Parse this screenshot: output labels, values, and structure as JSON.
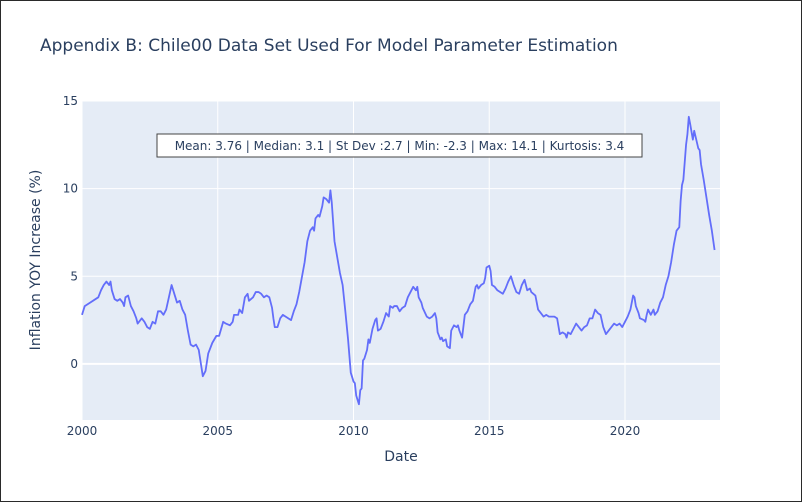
{
  "chart_data": {
    "type": "line",
    "title": "Appendix B: Chile00 Data Set Used For Model Parameter Estimation",
    "xlabel": "Date",
    "ylabel": "Inflation YOY Increase (%)",
    "xlim": [
      2000,
      2023.5
    ],
    "ylim": [
      -3.2,
      15
    ],
    "x_ticks": [
      2000,
      2005,
      2010,
      2015,
      2020
    ],
    "y_ticks": [
      0,
      5,
      10,
      15
    ],
    "grid": true,
    "annotation": "Mean: 3.76 | Median: 3.1 | St Dev :2.7 | Min: -2.3 | Max: 14.1 | Kurtosis: 3.4",
    "colors": {
      "line": "#636efa",
      "plot_bg": "#e5ecf6",
      "grid": "#ffffff",
      "text": "#2a3f5f"
    },
    "series": [
      {
        "points": [
          [
            2000.0,
            2.8
          ],
          [
            2000.1,
            3.3
          ],
          [
            2000.3,
            3.5
          ],
          [
            2000.5,
            3.7
          ],
          [
            2000.6,
            3.8
          ],
          [
            2000.7,
            4.2
          ],
          [
            2000.8,
            4.5
          ],
          [
            2000.9,
            4.7
          ],
          [
            2001.0,
            4.5
          ],
          [
            2001.05,
            4.7
          ],
          [
            2001.1,
            4.2
          ],
          [
            2001.2,
            3.7
          ],
          [
            2001.3,
            3.6
          ],
          [
            2001.4,
            3.7
          ],
          [
            2001.5,
            3.5
          ],
          [
            2001.55,
            3.3
          ],
          [
            2001.6,
            3.8
          ],
          [
            2001.7,
            3.9
          ],
          [
            2001.8,
            3.3
          ],
          [
            2001.9,
            3.0
          ],
          [
            2002.0,
            2.6
          ],
          [
            2002.05,
            2.3
          ],
          [
            2002.2,
            2.6
          ],
          [
            2002.3,
            2.4
          ],
          [
            2002.4,
            2.1
          ],
          [
            2002.5,
            2.0
          ],
          [
            2002.6,
            2.4
          ],
          [
            2002.7,
            2.3
          ],
          [
            2002.8,
            3.0
          ],
          [
            2002.9,
            3.0
          ],
          [
            2003.0,
            2.8
          ],
          [
            2003.1,
            3.1
          ],
          [
            2003.2,
            3.8
          ],
          [
            2003.3,
            4.5
          ],
          [
            2003.4,
            4.0
          ],
          [
            2003.5,
            3.5
          ],
          [
            2003.6,
            3.6
          ],
          [
            2003.7,
            3.1
          ],
          [
            2003.8,
            2.8
          ],
          [
            2003.9,
            1.9
          ],
          [
            2004.0,
            1.1
          ],
          [
            2004.1,
            1.0
          ],
          [
            2004.2,
            1.1
          ],
          [
            2004.3,
            0.8
          ],
          [
            2004.35,
            0.3
          ],
          [
            2004.4,
            -0.2
          ],
          [
            2004.45,
            -0.7
          ],
          [
            2004.55,
            -0.4
          ],
          [
            2004.65,
            0.6
          ],
          [
            2004.8,
            1.2
          ],
          [
            2004.95,
            1.6
          ],
          [
            2005.05,
            1.6
          ],
          [
            2005.2,
            2.4
          ],
          [
            2005.3,
            2.3
          ],
          [
            2005.45,
            2.2
          ],
          [
            2005.55,
            2.4
          ],
          [
            2005.6,
            2.8
          ],
          [
            2005.75,
            2.8
          ],
          [
            2005.8,
            3.1
          ],
          [
            2005.9,
            2.9
          ],
          [
            2006.0,
            3.8
          ],
          [
            2006.1,
            4.0
          ],
          [
            2006.15,
            3.6
          ],
          [
            2006.3,
            3.8
          ],
          [
            2006.4,
            4.1
          ],
          [
            2006.5,
            4.1
          ],
          [
            2006.6,
            4.0
          ],
          [
            2006.7,
            3.8
          ],
          [
            2006.8,
            3.9
          ],
          [
            2006.9,
            3.8
          ],
          [
            2007.0,
            3.2
          ],
          [
            2007.05,
            2.6
          ],
          [
            2007.1,
            2.1
          ],
          [
            2007.2,
            2.1
          ],
          [
            2007.3,
            2.6
          ],
          [
            2007.4,
            2.8
          ],
          [
            2007.5,
            2.7
          ],
          [
            2007.6,
            2.6
          ],
          [
            2007.7,
            2.5
          ],
          [
            2007.8,
            3.0
          ],
          [
            2007.9,
            3.4
          ],
          [
            2008.0,
            4.1
          ],
          [
            2008.2,
            5.8
          ],
          [
            2008.3,
            7.0
          ],
          [
            2008.4,
            7.6
          ],
          [
            2008.5,
            7.8
          ],
          [
            2008.55,
            7.6
          ],
          [
            2008.6,
            8.3
          ],
          [
            2008.7,
            8.5
          ],
          [
            2008.75,
            8.4
          ],
          [
            2008.85,
            9.0
          ],
          [
            2008.9,
            9.5
          ],
          [
            2009.0,
            9.4
          ],
          [
            2009.1,
            9.2
          ],
          [
            2009.15,
            9.9
          ],
          [
            2009.2,
            9.2
          ],
          [
            2009.3,
            7.0
          ],
          [
            2009.4,
            6.1
          ],
          [
            2009.5,
            5.2
          ],
          [
            2009.6,
            4.5
          ],
          [
            2009.7,
            3.0
          ],
          [
            2009.8,
            1.4
          ],
          [
            2009.9,
            -0.5
          ],
          [
            2010.0,
            -1.0
          ],
          [
            2010.05,
            -1.1
          ],
          [
            2010.1,
            -1.8
          ],
          [
            2010.2,
            -2.3
          ],
          [
            2010.25,
            -1.5
          ],
          [
            2010.3,
            -1.4
          ],
          [
            2010.35,
            0.2
          ],
          [
            2010.4,
            0.3
          ],
          [
            2010.5,
            0.8
          ],
          [
            2010.55,
            1.4
          ],
          [
            2010.6,
            1.2
          ],
          [
            2010.7,
            2.0
          ],
          [
            2010.8,
            2.5
          ],
          [
            2010.85,
            2.6
          ],
          [
            2010.9,
            1.9
          ],
          [
            2011.0,
            2.0
          ],
          [
            2011.1,
            2.4
          ],
          [
            2011.2,
            2.9
          ],
          [
            2011.3,
            2.7
          ],
          [
            2011.35,
            3.3
          ],
          [
            2011.45,
            3.2
          ],
          [
            2011.5,
            3.3
          ],
          [
            2011.6,
            3.3
          ],
          [
            2011.7,
            3.0
          ],
          [
            2011.8,
            3.2
          ],
          [
            2011.9,
            3.3
          ],
          [
            2012.0,
            3.8
          ],
          [
            2012.1,
            4.1
          ],
          [
            2012.2,
            4.4
          ],
          [
            2012.3,
            4.2
          ],
          [
            2012.35,
            4.4
          ],
          [
            2012.4,
            3.8
          ],
          [
            2012.5,
            3.5
          ],
          [
            2012.55,
            3.2
          ],
          [
            2012.7,
            2.7
          ],
          [
            2012.8,
            2.6
          ],
          [
            2012.9,
            2.7
          ],
          [
            2013.0,
            2.9
          ],
          [
            2013.05,
            2.6
          ],
          [
            2013.1,
            1.8
          ],
          [
            2013.2,
            1.4
          ],
          [
            2013.25,
            1.5
          ],
          [
            2013.3,
            1.3
          ],
          [
            2013.4,
            1.4
          ],
          [
            2013.45,
            1.0
          ],
          [
            2013.55,
            0.9
          ],
          [
            2013.6,
            1.9
          ],
          [
            2013.7,
            2.2
          ],
          [
            2013.8,
            2.1
          ],
          [
            2013.85,
            2.2
          ],
          [
            2013.9,
            1.9
          ],
          [
            2014.0,
            1.5
          ],
          [
            2014.1,
            2.8
          ],
          [
            2014.2,
            3.0
          ],
          [
            2014.3,
            3.4
          ],
          [
            2014.4,
            3.6
          ],
          [
            2014.5,
            4.4
          ],
          [
            2014.55,
            4.5
          ],
          [
            2014.6,
            4.3
          ],
          [
            2014.7,
            4.5
          ],
          [
            2014.8,
            4.6
          ],
          [
            2014.85,
            4.9
          ],
          [
            2014.9,
            5.5
          ],
          [
            2015.0,
            5.6
          ],
          [
            2015.05,
            5.3
          ],
          [
            2015.1,
            4.5
          ],
          [
            2015.2,
            4.4
          ],
          [
            2015.3,
            4.2
          ],
          [
            2015.4,
            4.1
          ],
          [
            2015.5,
            4.0
          ],
          [
            2015.6,
            4.3
          ],
          [
            2015.7,
            4.7
          ],
          [
            2015.8,
            5.0
          ],
          [
            2015.9,
            4.5
          ],
          [
            2016.0,
            4.1
          ],
          [
            2016.1,
            4.0
          ],
          [
            2016.2,
            4.5
          ],
          [
            2016.3,
            4.8
          ],
          [
            2016.4,
            4.2
          ],
          [
            2016.5,
            4.3
          ],
          [
            2016.55,
            4.1
          ],
          [
            2016.7,
            3.9
          ],
          [
            2016.8,
            3.1
          ],
          [
            2016.9,
            2.9
          ],
          [
            2017.0,
            2.7
          ],
          [
            2017.1,
            2.8
          ],
          [
            2017.2,
            2.7
          ],
          [
            2017.3,
            2.7
          ],
          [
            2017.4,
            2.7
          ],
          [
            2017.5,
            2.6
          ],
          [
            2017.6,
            1.7
          ],
          [
            2017.7,
            1.8
          ],
          [
            2017.8,
            1.7
          ],
          [
            2017.85,
            1.5
          ],
          [
            2017.9,
            1.8
          ],
          [
            2018.0,
            1.7
          ],
          [
            2018.1,
            2.0
          ],
          [
            2018.2,
            2.3
          ],
          [
            2018.3,
            2.1
          ],
          [
            2018.4,
            1.9
          ],
          [
            2018.5,
            2.1
          ],
          [
            2018.6,
            2.2
          ],
          [
            2018.7,
            2.6
          ],
          [
            2018.8,
            2.6
          ],
          [
            2018.9,
            3.1
          ],
          [
            2019.0,
            2.9
          ],
          [
            2019.1,
            2.8
          ],
          [
            2019.2,
            2.1
          ],
          [
            2019.3,
            1.7
          ],
          [
            2019.35,
            1.8
          ],
          [
            2019.4,
            1.9
          ],
          [
            2019.5,
            2.1
          ],
          [
            2019.6,
            2.3
          ],
          [
            2019.7,
            2.2
          ],
          [
            2019.8,
            2.3
          ],
          [
            2019.9,
            2.1
          ],
          [
            2020.0,
            2.4
          ],
          [
            2020.1,
            2.7
          ],
          [
            2020.2,
            3.1
          ],
          [
            2020.3,
            3.9
          ],
          [
            2020.35,
            3.8
          ],
          [
            2020.4,
            3.3
          ],
          [
            2020.5,
            2.9
          ],
          [
            2020.55,
            2.6
          ],
          [
            2020.7,
            2.5
          ],
          [
            2020.75,
            2.4
          ],
          [
            2020.8,
            2.8
          ],
          [
            2020.85,
            3.1
          ],
          [
            2020.95,
            2.8
          ],
          [
            2021.05,
            3.1
          ],
          [
            2021.1,
            2.8
          ],
          [
            2021.2,
            3.0
          ],
          [
            2021.3,
            3.5
          ],
          [
            2021.4,
            3.8
          ],
          [
            2021.5,
            4.5
          ],
          [
            2021.6,
            5.0
          ],
          [
            2021.7,
            5.8
          ],
          [
            2021.8,
            6.8
          ],
          [
            2021.9,
            7.6
          ],
          [
            2022.0,
            7.8
          ],
          [
            2022.05,
            9.3
          ],
          [
            2022.1,
            10.2
          ],
          [
            2022.15,
            10.5
          ],
          [
            2022.2,
            11.5
          ],
          [
            2022.25,
            12.5
          ],
          [
            2022.3,
            13.1
          ],
          [
            2022.35,
            14.1
          ],
          [
            2022.4,
            13.7
          ],
          [
            2022.5,
            12.8
          ],
          [
            2022.55,
            13.3
          ],
          [
            2022.7,
            12.3
          ],
          [
            2022.75,
            12.2
          ],
          [
            2022.8,
            11.4
          ],
          [
            2022.9,
            10.5
          ],
          [
            2023.0,
            9.5
          ],
          [
            2023.1,
            8.5
          ],
          [
            2023.2,
            7.6
          ],
          [
            2023.3,
            6.5
          ]
        ]
      }
    ]
  }
}
